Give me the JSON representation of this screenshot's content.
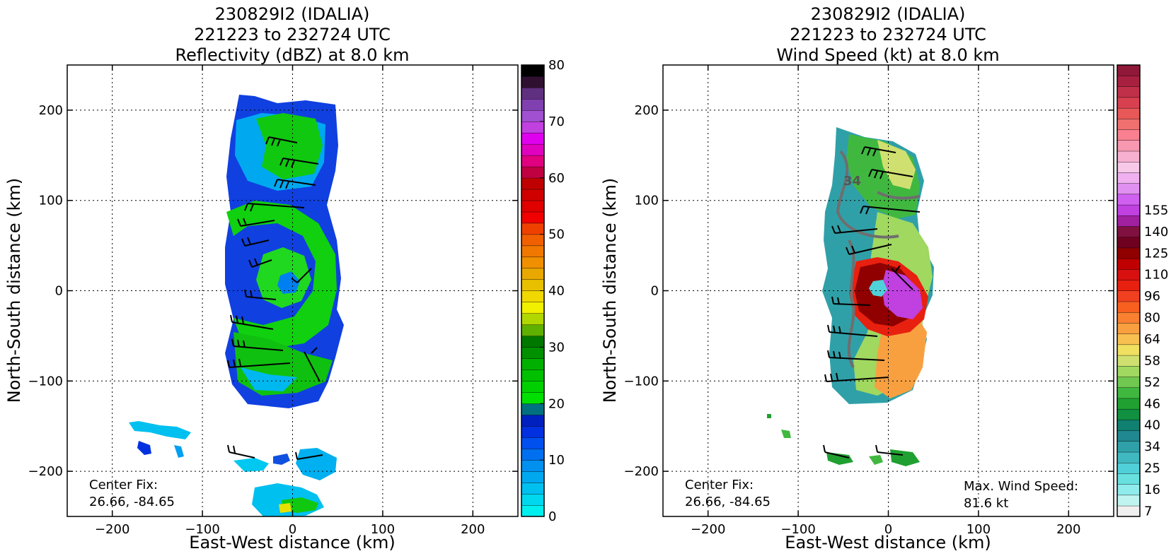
{
  "chart_data": [
    {
      "type": "heatmap",
      "title_lines": [
        "230829I2 (IDALIA)",
        "221223 to 232724 UTC",
        "Reflectivity (dBZ) at 8.0 km"
      ],
      "xlabel": "East-West distance (km)",
      "ylabel": "North-South distance (km)",
      "xlim": [
        -250,
        250
      ],
      "ylim": [
        -250,
        250
      ],
      "xticks": [
        -200,
        -100,
        0,
        100,
        200
      ],
      "yticks": [
        -200,
        -100,
        0,
        100,
        200
      ],
      "xtick_labels": [
        "−200",
        "−100",
        "0",
        "100",
        "200"
      ],
      "ytick_labels": [
        "−200",
        "−100",
        "0",
        "100",
        "200"
      ],
      "grid": true,
      "annotation_lines": [
        "Center Fix:",
        "26.66, -84.65"
      ],
      "colorbar": {
        "ticks": [
          0,
          10,
          20,
          30,
          40,
          50,
          60,
          70,
          80
        ],
        "colors": [
          "#00f0f0",
          "#00d8f0",
          "#00c0f0",
          "#00a8f0",
          "#0090f0",
          "#0070f0",
          "#0050f0",
          "#0030e0",
          "#0020c0",
          "#007080",
          "#00e000",
          "#00d000",
          "#00c000",
          "#00b000",
          "#009000",
          "#007800",
          "#60b000",
          "#b0d800",
          "#f0f000",
          "#f0d800",
          "#e8c000",
          "#e8a800",
          "#f09000",
          "#f07800",
          "#f06000",
          "#f04000",
          "#f00000",
          "#e00000",
          "#d00000",
          "#c00000",
          "#c00040",
          "#e00080",
          "#e000c0",
          "#e000f0",
          "#c040e0",
          "#a050d0",
          "#8040b0",
          "#603080",
          "#301030",
          "#000000"
        ]
      }
    },
    {
      "type": "heatmap",
      "title_lines": [
        "230829I2 (IDALIA)",
        "221223 to 232724 UTC",
        "Wind Speed (kt) at 8.0 km"
      ],
      "xlabel": "East-West distance (km)",
      "ylabel": "North-South distance (km)",
      "xlim": [
        -250,
        250
      ],
      "ylim": [
        -250,
        250
      ],
      "xticks": [
        -200,
        -100,
        0,
        100,
        200
      ],
      "yticks": [
        -200,
        -100,
        0,
        100,
        200
      ],
      "xtick_labels": [
        "−200",
        "−100",
        "0",
        "100",
        "200"
      ],
      "ytick_labels": [
        "−200",
        "−100",
        "0",
        "100",
        "200"
      ],
      "grid": true,
      "annotation_lines": [
        "Center Fix:",
        "26.66, -84.65"
      ],
      "max_wind_lines": [
        "Max. Wind Speed:",
        "81.6 kt"
      ],
      "contour_label": "34",
      "colorbar": {
        "tick_labels": [
          "7",
          "16",
          "25",
          "34",
          "40",
          "46",
          "52",
          "58",
          "64",
          "80",
          "96",
          "110",
          "125",
          "140",
          "155"
        ],
        "tick_bins": [
          0,
          2,
          4,
          6,
          8,
          10,
          12,
          14,
          16,
          18,
          20,
          22,
          24,
          26,
          28
        ],
        "colors": [
          "#f0f0f0",
          "#c0f4f0",
          "#90ecec",
          "#68e0e0",
          "#50d0d8",
          "#40b8c0",
          "#30a0a8",
          "#208890",
          "#108070",
          "#109040",
          "#20a030",
          "#40b840",
          "#70c850",
          "#a0d860",
          "#d0e070",
          "#f0e060",
          "#f8c050",
          "#f8a040",
          "#f88030",
          "#f86020",
          "#f04020",
          "#e82010",
          "#d81010",
          "#c00000",
          "#900000",
          "#700020",
          "#801040",
          "#a020a0",
          "#c040e0",
          "#d060f0",
          "#e090f0",
          "#f0b0f0",
          "#f8c8e8",
          "#f8b0d0",
          "#f898b0",
          "#f88090",
          "#f07070",
          "#e85858",
          "#d84050",
          "#c03048",
          "#a82040",
          "#901838"
        ]
      }
    }
  ]
}
